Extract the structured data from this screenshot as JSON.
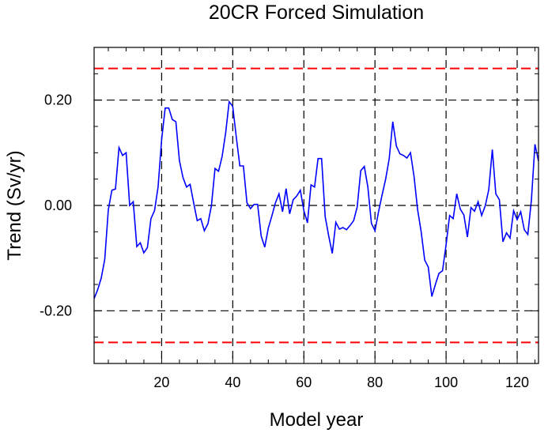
{
  "chart_data": {
    "type": "line",
    "title": "20CR Forced Simulation",
    "xlabel": "Model year",
    "ylabel": "Trend (Sv/yr)",
    "xlim": [
      1,
      126
    ],
    "ylim": [
      -0.3,
      0.3
    ],
    "xticks": [
      20,
      40,
      60,
      80,
      100,
      120
    ],
    "xtick_labels": [
      "20",
      "40",
      "60",
      "80",
      "100",
      "120"
    ],
    "yticks": [
      0.2,
      0.0,
      -0.2
    ],
    "ytick_labels": [
      "0.20",
      "0.00",
      "-0.20"
    ],
    "grid": true,
    "threshold_lines": [
      0.26,
      -0.26
    ],
    "colors": {
      "series": "#0000ff",
      "threshold": "#ff0000",
      "grid": "#000000"
    },
    "series": [
      {
        "name": "Trend",
        "x_start": 1,
        "values": [
          -0.177,
          -0.16,
          -0.138,
          -0.102,
          -0.008,
          0.029,
          0.031,
          0.11,
          0.095,
          0.1,
          0.0,
          0.007,
          -0.078,
          -0.071,
          -0.09,
          -0.08,
          -0.025,
          -0.01,
          0.035,
          0.125,
          0.185,
          0.185,
          0.163,
          0.159,
          0.085,
          0.053,
          0.035,
          0.04,
          0.005,
          -0.029,
          -0.025,
          -0.048,
          -0.035,
          0.0,
          0.07,
          0.065,
          0.093,
          0.138,
          0.197,
          0.188,
          0.13,
          0.075,
          0.075,
          0.005,
          -0.006,
          0.002,
          0.002,
          -0.058,
          -0.079,
          -0.043,
          -0.02,
          0.005,
          0.022,
          -0.012,
          0.032,
          -0.016,
          0.011,
          0.018,
          0.029,
          -0.01,
          -0.033,
          0.039,
          0.035,
          0.089,
          0.089,
          -0.021,
          -0.058,
          -0.091,
          -0.032,
          -0.045,
          -0.042,
          -0.046,
          -0.038,
          -0.029,
          -0.003,
          0.066,
          0.074,
          0.035,
          -0.034,
          -0.048,
          -0.012,
          0.02,
          0.05,
          0.089,
          0.159,
          0.113,
          0.098,
          0.095,
          0.09,
          0.1,
          0.055,
          -0.008,
          -0.05,
          -0.104,
          -0.117,
          -0.173,
          -0.15,
          -0.129,
          -0.124,
          -0.075,
          -0.019,
          -0.025,
          0.022,
          -0.007,
          -0.018,
          -0.06,
          -0.004,
          -0.011,
          0.007,
          -0.019,
          -0.001,
          0.03,
          0.106,
          0.022,
          0.011,
          -0.069,
          -0.052,
          -0.062,
          -0.01,
          -0.027,
          -0.012,
          -0.046,
          -0.055,
          0.01,
          0.116,
          0.084
        ]
      }
    ]
  }
}
